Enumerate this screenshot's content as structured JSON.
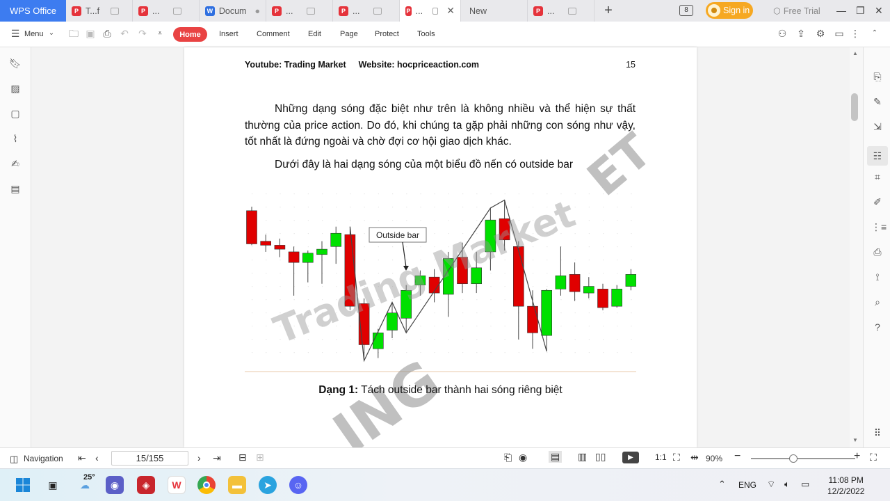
{
  "tabs": {
    "wps_office": "WPS Office",
    "items": [
      {
        "label": "T...f",
        "type": "pdf"
      },
      {
        "label": "...",
        "type": "pdf"
      },
      {
        "label": "Docum",
        "type": "word"
      },
      {
        "label": "...",
        "type": "pdf"
      },
      {
        "label": "...",
        "type": "pdf"
      },
      {
        "label": "...",
        "type": "pdf",
        "active": true
      },
      {
        "label": "New",
        "type": "new"
      },
      {
        "label": "...",
        "type": "pdf"
      }
    ],
    "add_label": "+",
    "badge": "8",
    "sign_in": "Sign in",
    "free_trial": "Free Trial"
  },
  "toolbar": {
    "menu": "Menu",
    "home": "Home",
    "insert": "Insert",
    "comment": "Comment",
    "edit": "Edit",
    "page": "Page",
    "protect": "Protect",
    "tools": "Tools"
  },
  "document": {
    "header_youtube": "Youtube: Trading Market",
    "header_website": "Website: hocpriceaction.com",
    "page_number": "15",
    "paragraph": "Những dạng sóng đặc biệt như trên là không nhiều và thể hiện sự thất thường của price action. Do đó, khi chúng ta gặp phải những con sóng như vậy, tốt nhất là đứng ngoài và chờ đợi cơ hội giao dịch khác.",
    "intro": "Dưới đây là hai dạng sóng của một biểu đồ nến có outside bar",
    "chart_annotation": "Outside bar",
    "watermark_main": "Trading Market",
    "caption_bold": "Dạng 1:",
    "caption_text": " Tách outside bar thành hai sóng riêng biệt"
  },
  "chart_data": {
    "type": "candlestick",
    "annotation": "Outside bar",
    "candles": [
      {
        "o": 8.5,
        "c": 6.0,
        "h": 8.8,
        "l": 5.9,
        "color": "red"
      },
      {
        "o": 6.2,
        "c": 5.9,
        "h": 6.7,
        "l": 5.4,
        "color": "red"
      },
      {
        "o": 5.9,
        "c": 5.6,
        "h": 6.4,
        "l": 5.0,
        "color": "red"
      },
      {
        "o": 5.4,
        "c": 4.6,
        "h": 5.8,
        "l": 2.1,
        "color": "red"
      },
      {
        "o": 4.6,
        "c": 5.3,
        "h": 5.5,
        "l": 3.1,
        "color": "green"
      },
      {
        "o": 5.2,
        "c": 5.6,
        "h": 6.2,
        "l": 3.0,
        "color": "green"
      },
      {
        "o": 5.8,
        "c": 6.8,
        "h": 7.3,
        "l": 4.5,
        "color": "green"
      },
      {
        "o": 6.7,
        "c": 1.3,
        "h": 7.3,
        "l": 1.0,
        "color": "red"
      },
      {
        "o": 1.5,
        "c": -1.6,
        "h": 1.9,
        "l": -2.8,
        "color": "red"
      },
      {
        "o": -1.9,
        "c": -0.7,
        "h": -0.4,
        "l": -2.6,
        "color": "green"
      },
      {
        "o": -0.5,
        "c": 0.8,
        "h": 1.6,
        "l": -1.1,
        "color": "green"
      },
      {
        "o": 0.4,
        "c": 2.5,
        "h": 2.9,
        "l": -0.7,
        "color": "green"
      },
      {
        "o": 2.9,
        "c": 3.6,
        "h": 4.0,
        "l": 2.1,
        "color": "green"
      },
      {
        "o": 3.5,
        "c": 2.3,
        "h": 4.1,
        "l": 1.6,
        "color": "red"
      },
      {
        "o": 2.2,
        "c": 4.9,
        "h": 5.4,
        "l": 0.5,
        "color": "green"
      },
      {
        "o": 5.0,
        "c": 3.0,
        "h": 6.1,
        "l": 2.3,
        "color": "red"
      },
      {
        "o": 3.0,
        "c": 4.2,
        "h": 5.4,
        "l": 2.3,
        "color": "green"
      },
      {
        "o": 5.4,
        "c": 7.8,
        "h": 8.7,
        "l": 4.0,
        "color": "green"
      },
      {
        "o": 7.9,
        "c": 6.3,
        "h": 9.3,
        "l": 5.5,
        "color": "red"
      },
      {
        "o": 5.8,
        "c": 1.3,
        "h": 6.2,
        "l": -1.2,
        "color": "red"
      },
      {
        "o": 1.3,
        "c": -0.7,
        "h": 2.5,
        "l": -1.9,
        "color": "red"
      },
      {
        "o": -0.9,
        "c": 2.5,
        "h": 2.6,
        "l": -2.1,
        "color": "green"
      },
      {
        "o": 2.6,
        "c": 3.6,
        "h": 5.8,
        "l": 2.1,
        "color": "green"
      },
      {
        "o": 3.7,
        "c": 2.4,
        "h": 4.6,
        "l": 1.7,
        "color": "red"
      },
      {
        "o": 2.3,
        "c": 2.8,
        "h": 3.5,
        "l": 1.9,
        "color": "green"
      },
      {
        "o": 2.6,
        "c": 1.2,
        "h": 3.0,
        "l": 1.0,
        "color": "red"
      },
      {
        "o": 1.3,
        "c": 2.6,
        "h": 2.9,
        "l": 1.2,
        "color": "green"
      },
      {
        "o": 2.8,
        "c": 3.7,
        "h": 4.1,
        "l": 2.5,
        "color": "green"
      }
    ],
    "wave_line": [
      [
        7,
        7.3
      ],
      [
        8,
        -2.8
      ],
      [
        10,
        1.6
      ],
      [
        11,
        -0.7
      ],
      [
        17,
        8.7
      ],
      [
        18,
        9.3
      ],
      [
        21,
        -2.1
      ]
    ]
  },
  "status": {
    "navigation": "Navigation",
    "page_indicator": "15/155",
    "zoom": "90%"
  },
  "taskbar": {
    "weather": "25°",
    "language": "ENG",
    "time": "11:08 PM",
    "date": "12/2/2022"
  },
  "colors": {
    "accent": "#3d7cf0",
    "home_red": "#e94343",
    "signin_orange": "#f6a822",
    "candle_green": "#00e000",
    "candle_red": "#e00000"
  }
}
